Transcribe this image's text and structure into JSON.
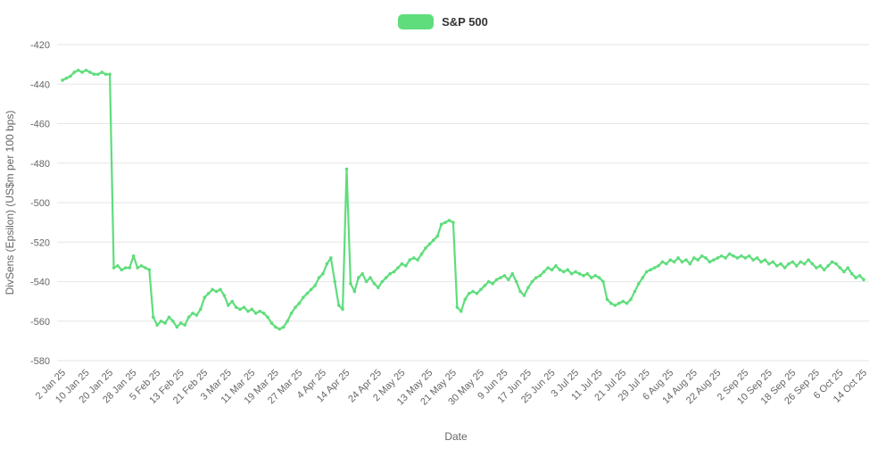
{
  "legend": {
    "items": [
      {
        "label": "S&P 500"
      }
    ]
  },
  "colors": {
    "line": "#5fdd7c",
    "grid": "#e6e6e6",
    "axis_text": "#666666",
    "legend_text": "#333333",
    "background": "#ffffff"
  },
  "chart_data": {
    "type": "line",
    "series_name": "S&P 500",
    "line_color": "#5fdd7c",
    "xlabel": "Date",
    "ylabel": "DivSens (Epsilon) (US$m per 100 bps)",
    "ylim": [
      -580,
      -420
    ],
    "y_ticks": [
      -420,
      -440,
      -460,
      -480,
      -500,
      -520,
      -540,
      -560,
      -580
    ],
    "grid": "horizontal-only",
    "legend_position": "top-center",
    "x_tick_labels": [
      "2 Jan 25",
      "10 Jan 25",
      "20 Jan 25",
      "28 Jan 25",
      "5 Feb 25",
      "13 Feb 25",
      "21 Feb 25",
      "3 Mar 25",
      "11 Mar 25",
      "19 Mar 25",
      "27 Mar 25",
      "4 Apr 25",
      "14 Apr 25",
      "24 Apr 25",
      "2 May 25",
      "13 May 25",
      "21 May 25",
      "30 May 25",
      "9 Jun 25",
      "17 Jun 25",
      "25 Jun 25",
      "3 Jul 25",
      "11 Jul 25",
      "21 Jul 25",
      "29 Jul 25",
      "6 Aug 25",
      "14 Aug 25",
      "22 Aug 25",
      "2 Sep 25",
      "10 Sep 25",
      "18 Sep 25",
      "26 Sep 25",
      "6 Oct 25",
      "14 Oct 25"
    ],
    "x": [
      "2 Jan 25",
      "3 Jan 25",
      "6 Jan 25",
      "7 Jan 25",
      "8 Jan 25",
      "9 Jan 25",
      "10 Jan 25",
      "13 Jan 25",
      "14 Jan 25",
      "15 Jan 25",
      "16 Jan 25",
      "17 Jan 25",
      "20 Jan 25",
      "21 Jan 25",
      "22 Jan 25",
      "23 Jan 25",
      "24 Jan 25",
      "27 Jan 25",
      "28 Jan 25",
      "29 Jan 25",
      "30 Jan 25",
      "31 Jan 25",
      "3 Feb 25",
      "4 Feb 25",
      "5 Feb 25",
      "6 Feb 25",
      "7 Feb 25",
      "10 Feb 25",
      "11 Feb 25",
      "12 Feb 25",
      "13 Feb 25",
      "14 Feb 25",
      "17 Feb 25",
      "18 Feb 25",
      "19 Feb 25",
      "20 Feb 25",
      "21 Feb 25",
      "24 Feb 25",
      "25 Feb 25",
      "26 Feb 25",
      "27 Feb 25",
      "28 Feb 25",
      "3 Mar 25",
      "4 Mar 25",
      "5 Mar 25",
      "6 Mar 25",
      "7 Mar 25",
      "10 Mar 25",
      "11 Mar 25",
      "12 Mar 25",
      "13 Mar 25",
      "14 Mar 25",
      "17 Mar 25",
      "18 Mar 25",
      "19 Mar 25",
      "20 Mar 25",
      "21 Mar 25",
      "24 Mar 25",
      "25 Mar 25",
      "26 Mar 25",
      "27 Mar 25",
      "28 Mar 25",
      "31 Mar 25",
      "1 Apr 25",
      "2 Apr 25",
      "3 Apr 25",
      "4 Apr 25",
      "7 Apr 25",
      "8 Apr 25",
      "9 Apr 25",
      "10 Apr 25",
      "11 Apr 25",
      "14 Apr 25",
      "15 Apr 25",
      "16 Apr 25",
      "17 Apr 25",
      "18 Apr 25",
      "21 Apr 25",
      "22 Apr 25",
      "23 Apr 25",
      "24 Apr 25",
      "25 Apr 25",
      "28 Apr 25",
      "29 Apr 25",
      "30 Apr 25",
      "1 May 25",
      "2 May 25",
      "5 May 25",
      "6 May 25",
      "7 May 25",
      "8 May 25",
      "9 May 25",
      "12 May 25",
      "13 May 25",
      "14 May 25",
      "15 May 25",
      "16 May 25",
      "19 May 25",
      "20 May 25",
      "21 May 25",
      "22 May 25",
      "23 May 25",
      "26 May 25",
      "27 May 25",
      "28 May 25",
      "29 May 25",
      "30 May 25",
      "2 Jun 25",
      "3 Jun 25",
      "4 Jun 25",
      "5 Jun 25",
      "6 Jun 25",
      "9 Jun 25",
      "10 Jun 25",
      "11 Jun 25",
      "12 Jun 25",
      "13 Jun 25",
      "16 Jun 25",
      "17 Jun 25",
      "18 Jun 25",
      "19 Jun 25",
      "20 Jun 25",
      "23 Jun 25",
      "24 Jun 25",
      "25 Jun 25",
      "26 Jun 25",
      "27 Jun 25",
      "30 Jun 25",
      "1 Jul 25",
      "2 Jul 25",
      "3 Jul 25",
      "4 Jul 25",
      "7 Jul 25",
      "8 Jul 25",
      "9 Jul 25",
      "10 Jul 25",
      "11 Jul 25",
      "14 Jul 25",
      "15 Jul 25",
      "16 Jul 25",
      "17 Jul 25",
      "18 Jul 25",
      "21 Jul 25",
      "22 Jul 25",
      "23 Jul 25",
      "24 Jul 25",
      "25 Jul 25",
      "28 Jul 25",
      "29 Jul 25",
      "30 Jul 25",
      "31 Jul 25",
      "1 Aug 25",
      "4 Aug 25",
      "5 Aug 25",
      "6 Aug 25",
      "7 Aug 25",
      "8 Aug 25",
      "11 Aug 25",
      "12 Aug 25",
      "13 Aug 25",
      "14 Aug 25",
      "15 Aug 25",
      "18 Aug 25",
      "19 Aug 25",
      "20 Aug 25",
      "21 Aug 25",
      "22 Aug 25",
      "25 Aug 25",
      "26 Aug 25",
      "27 Aug 25",
      "28 Aug 25",
      "29 Aug 25",
      "1 Sep 25",
      "2 Sep 25",
      "3 Sep 25",
      "4 Sep 25",
      "5 Sep 25",
      "8 Sep 25",
      "9 Sep 25",
      "10 Sep 25",
      "11 Sep 25",
      "12 Sep 25",
      "15 Sep 25",
      "16 Sep 25",
      "17 Sep 25",
      "18 Sep 25",
      "19 Sep 25",
      "22 Sep 25",
      "23 Sep 25",
      "24 Sep 25",
      "25 Sep 25",
      "26 Sep 25",
      "29 Sep 25",
      "30 Sep 25",
      "1 Oct 25",
      "2 Oct 25",
      "3 Oct 25",
      "6 Oct 25",
      "7 Oct 25",
      "8 Oct 25",
      "9 Oct 25",
      "10 Oct 25",
      "13 Oct 25",
      "14 Oct 25"
    ],
    "values": [
      -438,
      -437,
      -436,
      -434,
      -433,
      -434,
      -433,
      -434,
      -435,
      -435,
      -434,
      -435,
      -435,
      -533,
      -532,
      -534,
      -533,
      -533,
      -527,
      -533,
      -532,
      -533,
      -534,
      -558,
      -562,
      -560,
      -561,
      -558,
      -560,
      -563,
      -561,
      -562,
      -558,
      -556,
      -557,
      -554,
      -548,
      -546,
      -544,
      -545,
      -544,
      -547,
      -552,
      -550,
      -553,
      -554,
      -553,
      -555,
      -554,
      -556,
      -555,
      -556,
      -558,
      -561,
      -563,
      -564,
      -563,
      -560,
      -556,
      -553,
      -551,
      -548,
      -546,
      -544,
      -542,
      -538,
      -536,
      -531,
      -528,
      -540,
      -552,
      -554,
      -483,
      -541,
      -545,
      -538,
      -536,
      -540,
      -538,
      -541,
      -543,
      -540,
      -538,
      -536,
      -535,
      -533,
      -531,
      -532,
      -529,
      -528,
      -529,
      -526,
      -523,
      -521,
      -519,
      -517,
      -511,
      -510,
      -509,
      -510,
      -553,
      -555,
      -549,
      -546,
      -545,
      -546,
      -544,
      -542,
      -540,
      -541,
      -539,
      -538,
      -537,
      -539,
      -536,
      -540,
      -545,
      -547,
      -543,
      -540,
      -538,
      -537,
      -535,
      -533,
      -534,
      -532,
      -534,
      -535,
      -534,
      -536,
      -535,
      -536,
      -537,
      -536,
      -538,
      -537,
      -538,
      -540,
      -549,
      -551,
      -552,
      -551,
      -550,
      -551,
      -549,
      -545,
      -541,
      -538,
      -535,
      -534,
      -533,
      -532,
      -530,
      -531,
      -529,
      -530,
      -528,
      -530,
      -529,
      -531,
      -528,
      -529,
      -527,
      -528,
      -530,
      -529,
      -528,
      -527,
      -528,
      -526,
      -527,
      -528,
      -527,
      -528,
      -527,
      -529,
      -528,
      -530,
      -529,
      -531,
      -530,
      -532,
      -531,
      -533,
      -531,
      -530,
      -532,
      -530,
      -531,
      -529,
      -531,
      -533,
      -532,
      -534,
      -532,
      -530,
      -531,
      -533,
      -535,
      -533,
      -536,
      -538,
      -537,
      -539
    ]
  }
}
